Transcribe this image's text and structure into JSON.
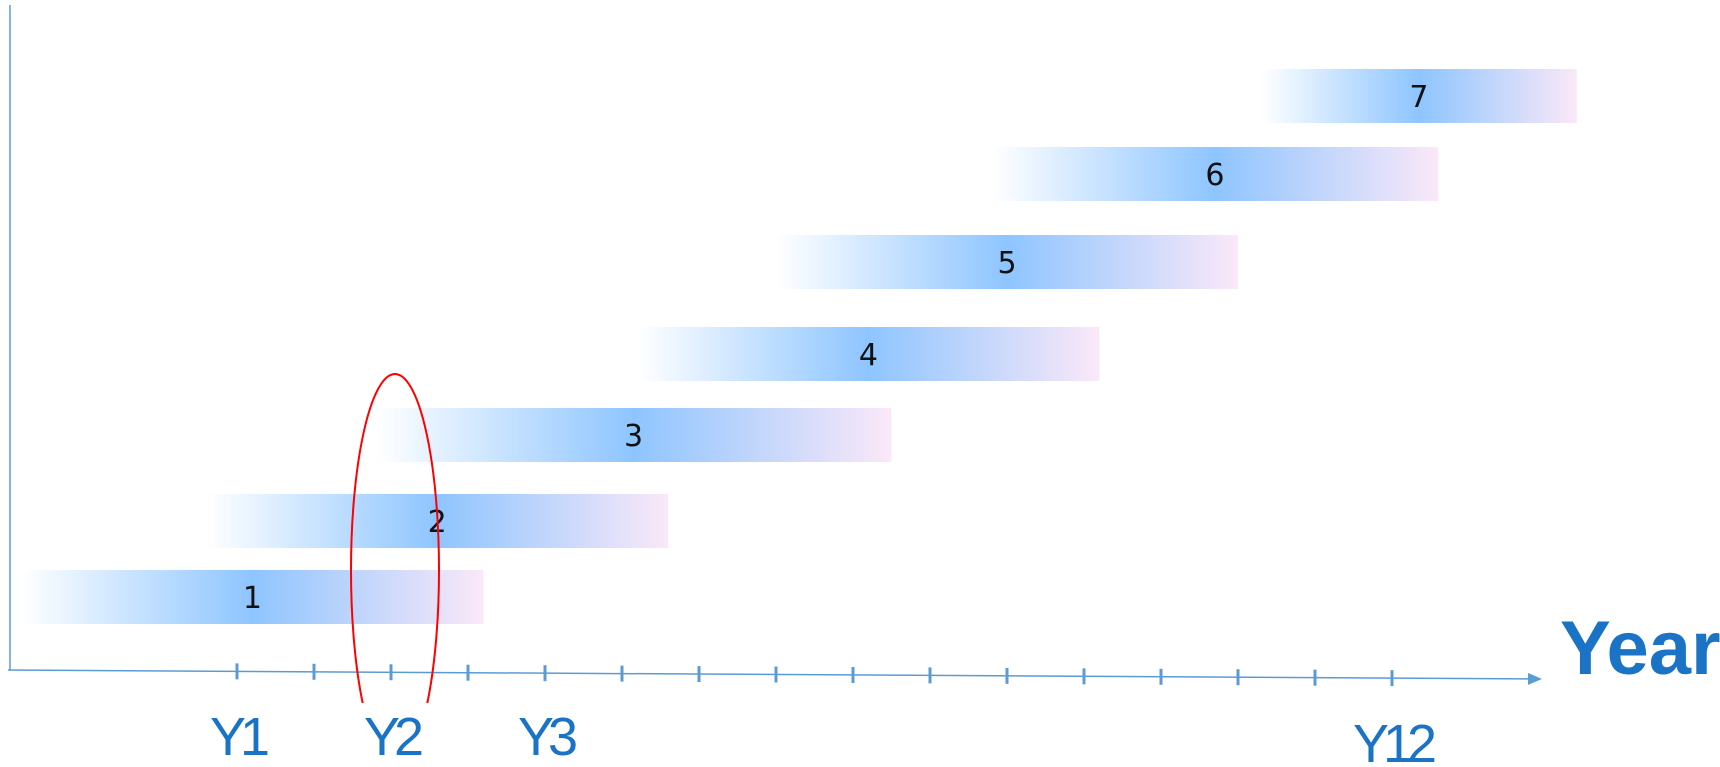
{
  "chart_data": {
    "type": "timeline",
    "xlabel": "Year",
    "tick_labels": [
      {
        "tick": 0,
        "label": "Y1"
      },
      {
        "tick": 2,
        "label": "Y2"
      },
      {
        "tick": 4,
        "label": "Y3"
      },
      {
        "tick": 15,
        "label": "Y12"
      }
    ],
    "tick_count": 16,
    "bars": [
      {
        "label": "1",
        "start": -2.8,
        "end": 3.2
      },
      {
        "label": "2",
        "start": -0.4,
        "end": 5.6
      },
      {
        "label": "3",
        "start": 1.8,
        "end": 8.5
      },
      {
        "label": "4",
        "start": 5.2,
        "end": 11.2
      },
      {
        "label": "5",
        "start": 7.0,
        "end": 13.0
      },
      {
        "label": "6",
        "start": 9.8,
        "end": 15.6
      },
      {
        "label": "7",
        "start": 13.3,
        "end": 17.4
      }
    ],
    "highlight": {
      "tick": 2,
      "shape": "ellipse",
      "color": "#ff0000"
    },
    "colors": {
      "axis": "#5b9bd5",
      "tick": "#5b9bd5",
      "bar_start": "#ffffff",
      "bar_mid": "#8ec5ff",
      "bar_end": "#fae8f8",
      "year_text": "#1a73c4"
    }
  }
}
